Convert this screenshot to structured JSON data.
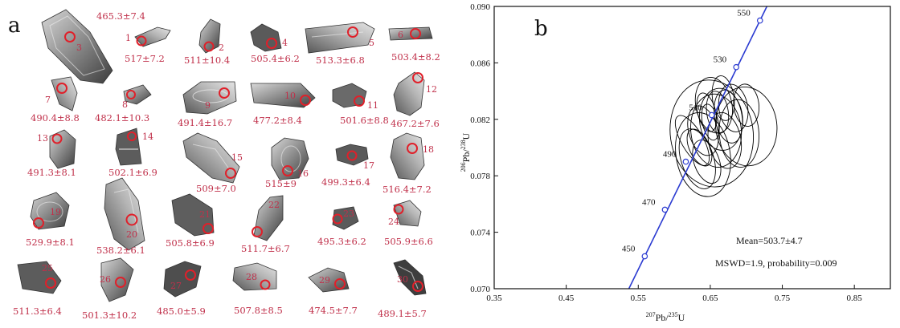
{
  "panel_a": {
    "letter": "a",
    "grains": [
      {
        "num": "3",
        "age": "465.3±7.4"
      },
      {
        "num": "1",
        "age": "517±7.2"
      },
      {
        "num": "2",
        "age": "511±10.4"
      },
      {
        "num": "4",
        "age": "505.4±6.2"
      },
      {
        "num": "5",
        "age": "513.3±6.8"
      },
      {
        "num": "6",
        "age": "503.4±8.2"
      },
      {
        "num": "7",
        "age": "490.4±8.8"
      },
      {
        "num": "8",
        "age": "482.1±10.3"
      },
      {
        "num": "9",
        "age": "491.4±16.7"
      },
      {
        "num": "10",
        "age": "477.2±8.4"
      },
      {
        "num": "11",
        "age": "501.6±8.8"
      },
      {
        "num": "12",
        "age": "467.2±7.6"
      },
      {
        "num": "13",
        "age": "491.3±8.1"
      },
      {
        "num": "14",
        "age": "502.1±6.9"
      },
      {
        "num": "15",
        "age": "509±7.0"
      },
      {
        "num": "16",
        "age": "515±9"
      },
      {
        "num": "17",
        "age": "499.3±6.4"
      },
      {
        "num": "18",
        "age": "516.4±7.2"
      },
      {
        "num": "19",
        "age": "529.9±8.1"
      },
      {
        "num": "20",
        "age": "538.2±6.1"
      },
      {
        "num": "21",
        "age": "505.8±6.9"
      },
      {
        "num": "22",
        "age": "511.7±6.7"
      },
      {
        "num": "23",
        "age": "495.3±6.2"
      },
      {
        "num": "24",
        "age": "505.9±6.6"
      },
      {
        "num": "25",
        "age": "511.3±6.4"
      },
      {
        "num": "26",
        "age": "501.3±10.2"
      },
      {
        "num": "27",
        "age": "485.0±5.9"
      },
      {
        "num": "28",
        "age": "507.8±8.5"
      },
      {
        "num": "29",
        "age": "474.5±7.7"
      },
      {
        "num": "30",
        "age": "489.1±5.7"
      }
    ]
  },
  "panel_b": {
    "letter": "b",
    "mean_text": "Mean=503.7±4.7",
    "mswd_text": "MSWD=1.9, probability=0.009",
    "xlabel_sup": "207",
    "xlabel_base": "Pb/",
    "xlabel_sup2": "235",
    "xlabel_end": "U",
    "ylabel_sup": "206",
    "ylabel_base": "Pb/",
    "ylabel_sup2": "238",
    "ylabel_end": "U"
  },
  "chart_data": {
    "type": "scatter",
    "xlim": [
      0.35,
      0.9
    ],
    "ylim": [
      0.07,
      0.09
    ],
    "xticks": [
      "0.35",
      "0.45",
      "0.55",
      "0.65",
      "0.75",
      "0.85"
    ],
    "yticks": [
      "0.070",
      "0.074",
      "0.078",
      "0.082",
      "0.086",
      "0.090"
    ],
    "concordia": [
      {
        "label": "450",
        "x": 0.559,
        "y": 0.0723
      },
      {
        "label": "470",
        "x": 0.587,
        "y": 0.0756
      },
      {
        "label": "490",
        "x": 0.616,
        "y": 0.079
      },
      {
        "label": "510",
        "x": 0.652,
        "y": 0.0823
      },
      {
        "label": "530",
        "x": 0.686,
        "y": 0.0857
      },
      {
        "label": "550",
        "x": 0.719,
        "y": 0.089
      }
    ],
    "ellipses": [
      {
        "cx": 0.652,
        "cy": 0.081,
        "rx": 0.115,
        "ry": 0.0038,
        "rot": -8
      },
      {
        "cx": 0.64,
        "cy": 0.0795,
        "rx": 0.075,
        "ry": 0.003,
        "rot": -10
      },
      {
        "cx": 0.665,
        "cy": 0.082,
        "rx": 0.06,
        "ry": 0.0022,
        "rot": -5
      },
      {
        "cx": 0.7,
        "cy": 0.0815,
        "rx": 0.085,
        "ry": 0.0028,
        "rot": -6
      },
      {
        "cx": 0.655,
        "cy": 0.083,
        "rx": 0.05,
        "ry": 0.002,
        "rot": -12
      },
      {
        "cx": 0.64,
        "cy": 0.0812,
        "rx": 0.04,
        "ry": 0.0018,
        "rot": -15
      },
      {
        "cx": 0.67,
        "cy": 0.0805,
        "rx": 0.045,
        "ry": 0.002,
        "rot": -10
      },
      {
        "cx": 0.645,
        "cy": 0.079,
        "rx": 0.035,
        "ry": 0.0016,
        "rot": -20
      },
      {
        "cx": 0.66,
        "cy": 0.0825,
        "rx": 0.03,
        "ry": 0.0015,
        "rot": -8
      },
      {
        "cx": 0.675,
        "cy": 0.0822,
        "rx": 0.038,
        "ry": 0.0019,
        "rot": -10
      },
      {
        "cx": 0.635,
        "cy": 0.08,
        "rx": 0.028,
        "ry": 0.0014,
        "rot": -25
      },
      {
        "cx": 0.69,
        "cy": 0.081,
        "rx": 0.055,
        "ry": 0.0024,
        "rot": -4
      },
      {
        "cx": 0.65,
        "cy": 0.0818,
        "rx": 0.022,
        "ry": 0.0013,
        "rot": -12
      },
      {
        "cx": 0.668,
        "cy": 0.0835,
        "rx": 0.03,
        "ry": 0.0016,
        "rot": -8
      },
      {
        "cx": 0.625,
        "cy": 0.0805,
        "rx": 0.03,
        "ry": 0.002,
        "rot": -30
      },
      {
        "cx": 0.658,
        "cy": 0.0812,
        "rx": 0.07,
        "ry": 0.0026,
        "rot": -6
      },
      {
        "cx": 0.682,
        "cy": 0.0828,
        "rx": 0.04,
        "ry": 0.0017,
        "rot": -9
      },
      {
        "cx": 0.645,
        "cy": 0.0825,
        "rx": 0.025,
        "ry": 0.0014,
        "rot": -14
      },
      {
        "cx": 0.632,
        "cy": 0.0792,
        "rx": 0.045,
        "ry": 0.0022,
        "rot": -18
      },
      {
        "cx": 0.7,
        "cy": 0.083,
        "rx": 0.035,
        "ry": 0.0015,
        "rot": -6
      }
    ],
    "line_color": "#2b3bd1",
    "ellipse_color": "#000000"
  }
}
